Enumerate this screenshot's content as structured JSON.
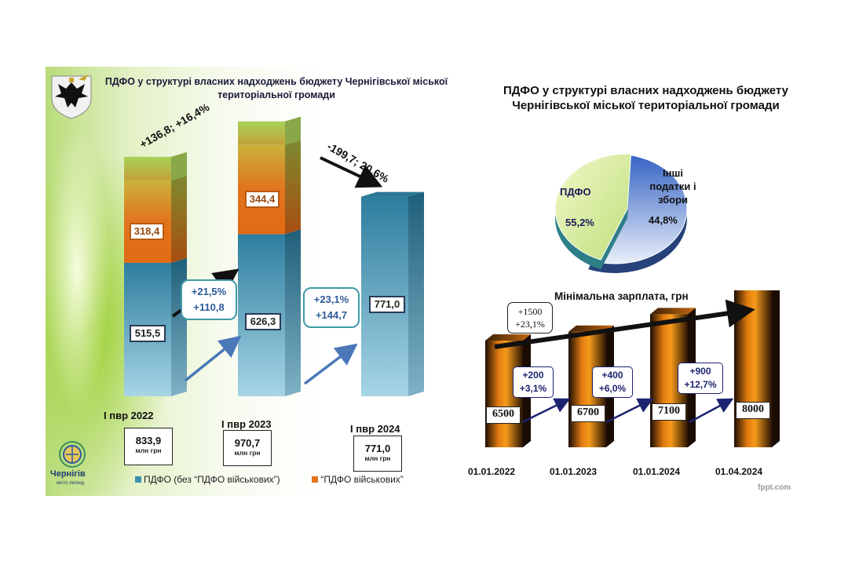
{
  "left_panel": {
    "title": "ПДФО у структурі власних надходжень бюджету Чернігівської міської територіальної громади",
    "arrow_up_label": "+136,8; +16,4%",
    "arrow_down_label": "-199,7; 20,6%",
    "growth_1": {
      "line1": "+21,5%",
      "line2": "+110,8"
    },
    "growth_2": {
      "line1": "+23,1%",
      "line2": "+144,7"
    },
    "totals": [
      {
        "period": "І пвр 2022",
        "value": "833,9",
        "unit": "млн грн"
      },
      {
        "period": "І пвр 2023",
        "value": "970,7",
        "unit": "млн грн"
      },
      {
        "period": "І пвр 2024",
        "value": "771,0",
        "unit": "млн грн"
      }
    ],
    "logo_text": "Чернігів",
    "logo_subtext": "місто легенд",
    "colors": {
      "base": "#3b8fae",
      "military": "#e2741e",
      "top": "#9bc94a"
    }
  },
  "chart_data": [
    {
      "type": "bar",
      "stacked": true,
      "title": "ПДФО у структурі власних надходжень бюджету Чернігівської міської територіальної громади",
      "categories": [
        "І пвр 2022",
        "І пвр 2023",
        "І пвр 2024"
      ],
      "series": [
        {
          "name": "ПДФО (без “ПДФО військових”)",
          "values": [
            515.5,
            626.3,
            771.0
          ],
          "labels": [
            "515,5",
            "626,3",
            "771,0"
          ],
          "color": "#3b8fae"
        },
        {
          "name": "“ПДФО військових”",
          "values": [
            318.4,
            344.4,
            0
          ],
          "labels": [
            "318,4",
            "344,4",
            ""
          ],
          "color": "#e2741e"
        }
      ],
      "legend": "bottom"
    },
    {
      "type": "pie",
      "title": "ПДФО у структурі власних надходжень бюджету Чернігівської міської територіальної громади",
      "slices": [
        {
          "label": "ПДФО",
          "value": 55.2,
          "display": "55,2%",
          "color": "#4a74c9"
        },
        {
          "label": "Інші податки і збори",
          "value": 44.8,
          "display": "44,8%",
          "color": "#d7ee9c"
        }
      ]
    },
    {
      "type": "bar",
      "title": "Мінімальна зарплата, грн",
      "categories": [
        "01.01.2022",
        "01.01.2023",
        "01.01.2024",
        "01.04.2024"
      ],
      "values": [
        6500,
        6700,
        7100,
        8000
      ],
      "labels": [
        "6500",
        "6700",
        "7100",
        "8000"
      ],
      "increments": [
        {
          "line1": "+200",
          "line2": "+3,1%"
        },
        {
          "line1": "+400",
          "line2": "+6,0%"
        },
        {
          "line1": "+900",
          "line2": "+12,7%"
        }
      ],
      "total_increment": {
        "line1": "+1500",
        "line2": "+23,1%"
      }
    }
  ],
  "watermark": "fppt.com"
}
